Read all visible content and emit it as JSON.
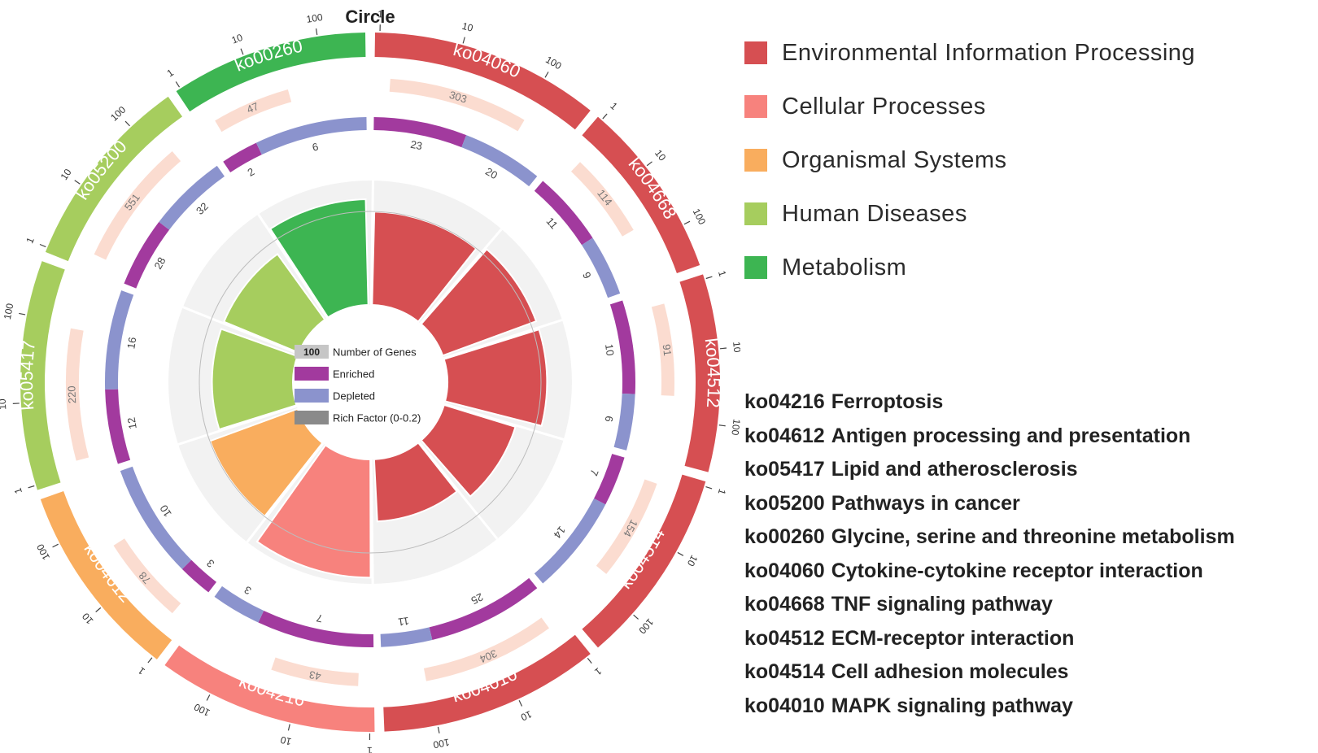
{
  "chart_data": {
    "type": "circos",
    "title": "Circle",
    "center_legend": [
      {
        "label": "Number of Genes",
        "badge": "100"
      },
      {
        "label": "Enriched"
      },
      {
        "label": "Depleted"
      },
      {
        "label": "Rich Factor (0-0.2)"
      }
    ],
    "categories": [
      {
        "name": "Environmental Information Processing",
        "color": "#d64f52"
      },
      {
        "name": "Cellular Processes",
        "color": "#f7827d"
      },
      {
        "name": "Organismal Systems",
        "color": "#f9ad5e"
      },
      {
        "name": "Human Diseases",
        "color": "#a6cd5e"
      },
      {
        "name": "Metabolism",
        "color": "#3db552"
      }
    ],
    "terms": [
      {
        "id": "ko04060",
        "category": 0,
        "genes": 303,
        "enriched": 23,
        "depleted": 20,
        "rich_factor": 0.15,
        "span": 1.0
      },
      {
        "id": "ko04668",
        "category": 0,
        "genes": 114,
        "enriched": 11,
        "depleted": 9,
        "rich_factor": 0.16,
        "span": 0.78
      },
      {
        "id": "ko04512",
        "category": 0,
        "genes": 91,
        "enriched": 10,
        "depleted": 6,
        "rich_factor": 0.16,
        "span": 0.86
      },
      {
        "id": "ko04514",
        "category": 0,
        "genes": 154,
        "enriched": 7,
        "depleted": 14,
        "rich_factor": 0.12,
        "span": 0.86
      },
      {
        "id": "ko04010",
        "category": 0,
        "genes": 304,
        "enriched": 25,
        "depleted": 11,
        "rich_factor": 0.1,
        "span": 0.96
      },
      {
        "id": "ko04216",
        "category": 1,
        "genes": 43,
        "enriched": 7,
        "depleted": 3,
        "rich_factor": 0.19,
        "span": 0.96
      },
      {
        "id": "ko04612",
        "category": 2,
        "genes": 78,
        "enriched": 3,
        "depleted": 10,
        "rich_factor": 0.15,
        "span": 0.86
      },
      {
        "id": "ko05417",
        "category": 3,
        "genes": 220,
        "enriched": 12,
        "depleted": 16,
        "rich_factor": 0.13,
        "span": 1.0
      },
      {
        "id": "ko05200",
        "category": 3,
        "genes": 551,
        "enriched": 28,
        "depleted": 32,
        "rich_factor": 0.13,
        "span": 0.86
      },
      {
        "id": "ko00260",
        "category": 4,
        "genes": 47,
        "enriched": 2,
        "depleted": 6,
        "rich_factor": 0.17,
        "span": 0.86
      }
    ],
    "ticks": [
      "1",
      "10",
      "100"
    ]
  },
  "legend_title_hidden": "",
  "pathway_list": [
    {
      "id": "ko04216",
      "name": "Ferroptosis"
    },
    {
      "id": "ko04612",
      "name": "Antigen processing and presentation"
    },
    {
      "id": "ko05417",
      "name": "Lipid and atherosclerosis"
    },
    {
      "id": "ko05200",
      "name": "Pathways in cancer"
    },
    {
      "id": "ko00260",
      "name": "Glycine, serine and threonine metabolism"
    },
    {
      "id": "ko04060",
      "name": "Cytokine-cytokine receptor interaction"
    },
    {
      "id": "ko04668",
      "name": "TNF signaling pathway"
    },
    {
      "id": "ko04512",
      "name": "ECM-receptor interaction"
    },
    {
      "id": "ko04514",
      "name": "Cell adhesion molecules"
    },
    {
      "id": "ko04010",
      "name": "MAPK signaling pathway"
    }
  ],
  "colors": {
    "enriched": "#a23a9e",
    "depleted": "#8b93cd",
    "gene_bar": "#fbdcd0",
    "track_bg": "#f2f2f2"
  }
}
